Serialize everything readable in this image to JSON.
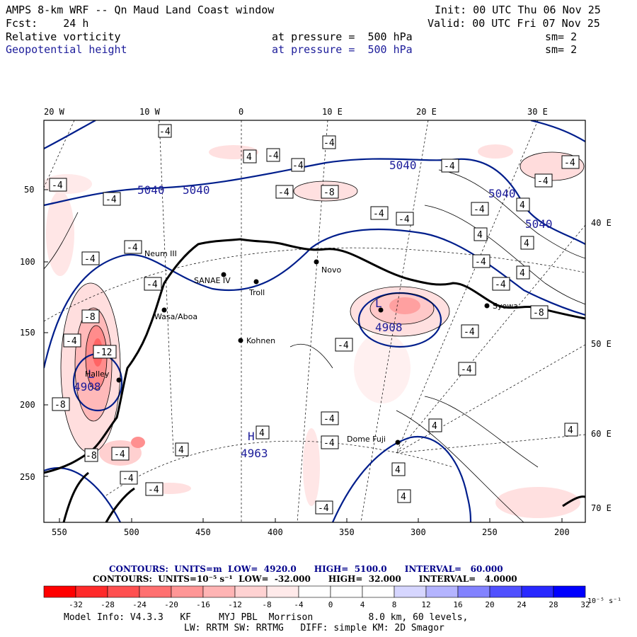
{
  "header": {
    "title": "AMPS 8-km WRF -- Qn Maud Land Coast window",
    "init": "Init: 00 UTC Thu 06 Nov 25",
    "forecast": "Fcst:    24 h",
    "valid": "Valid: 00 UTC Fri 07 Nov 25",
    "field1": {
      "name": "Relative vorticity",
      "level": "at pressure =  500 hPa",
      "smooth": "sm= 2"
    },
    "field2": {
      "name": "Geopotential height",
      "level": "at pressure =  500 hPa",
      "smooth": "sm= 2"
    }
  },
  "map": {
    "lon_labels_top": [
      "20 W",
      "10 W",
      "0",
      "10 E",
      "20 E",
      "30 E"
    ],
    "lon_labels_right": [
      "40 E",
      "50 E",
      "60 E",
      "70 E"
    ],
    "y_ticks": [
      "50",
      "100",
      "150",
      "200",
      "250"
    ],
    "x_ticks": [
      "550",
      "500",
      "450",
      "400",
      "350",
      "300",
      "250",
      "200"
    ],
    "stations": [
      "Neum III",
      "SANAE IV",
      "Troll",
      "Novo",
      "Wasa/Aboa",
      "Kohnen",
      "Halley",
      "Syowa",
      "Dome Fuji"
    ],
    "height_contour_labels": [
      "5040",
      "5040",
      "5040",
      "5040",
      "5040",
      "4908",
      "4908",
      "4963"
    ],
    "center_markers": [
      "L",
      "L",
      "H"
    ],
    "vorticity_labels": [
      "-4",
      "4",
      "-8",
      "-12"
    ],
    "colors": {
      "height_contour": "#001e8c",
      "coast": "#000000"
    }
  },
  "contour_info": {
    "line1": "CONTOURS:  UNITS=m  LOW=  4920.0      HIGH=  5100.0      INTERVAL=   60.000",
    "line2": "CONTOURS:  UNITS=10⁻⁵ s⁻¹  LOW=  -32.000      HIGH=  32.000      INTERVAL=   4.0000"
  },
  "colorbar": {
    "colors": [
      "#ff0000",
      "#ff2a2a",
      "#ff5050",
      "#ff7070",
      "#ff9696",
      "#ffb4b4",
      "#ffd2d2",
      "#ffeaea",
      "#ffffff",
      "#ffffff",
      "#ffffff",
      "#d6d6ff",
      "#b4b4ff",
      "#8282ff",
      "#5050ff",
      "#2828ff",
      "#0000ff"
    ],
    "labels": [
      "-32",
      "-28",
      "-24",
      "-20",
      "-16",
      "-12",
      "-8",
      "-4",
      "0",
      "4",
      "8",
      "12",
      "16",
      "20",
      "24",
      "28",
      "32"
    ],
    "unit": "10⁻⁵ s⁻¹"
  },
  "model_info": {
    "line1": "Model Info: V4.3.3   KF     MYJ PBL  Morrison          8.0 km, 60 levels,",
    "line2": "LW: RRTM SW: RRTMG   DIFF: simple KM: 2D Smagor"
  }
}
